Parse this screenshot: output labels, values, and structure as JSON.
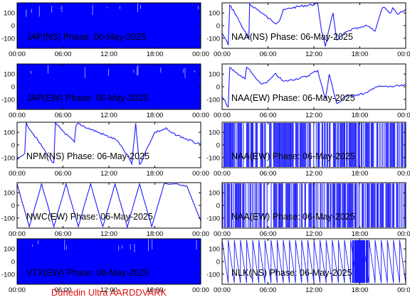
{
  "footer": "Dunedin Ultra AARDDVARK",
  "colors": {
    "trace": "#1a1aff",
    "fill": "#0000ff"
  },
  "chart_data": [
    {
      "type": "line",
      "title": "JAP(NS) Phase: 06-May-2025",
      "x_ticks": [
        "00:00",
        "06:00",
        "12:00",
        "18:00",
        "00:00"
      ],
      "y_ticks": [
        100,
        0,
        -100
      ],
      "ylim": [
        -180,
        180
      ],
      "xlim_hours": [
        0,
        24
      ],
      "style": "solid_fill",
      "series": []
    },
    {
      "type": "line",
      "title": "NAA(NS) Phase: 06-May-2025",
      "x_ticks": [
        "00:00",
        "06:00",
        "12:00",
        "18:00",
        "00:00"
      ],
      "y_ticks": [
        100,
        0,
        -100
      ],
      "ylim": [
        -180,
        180
      ],
      "xlim_hours": [
        0,
        24
      ],
      "style": "trace",
      "series": [
        {
          "x": [
            0,
            0.8,
            1.0,
            1.5,
            3.5,
            3.6,
            5.0,
            6.0,
            7.0,
            7.5,
            8.0,
            9.0,
            11.0,
            12.5,
            13.0,
            13.5,
            14.5,
            15.0,
            16.0,
            17.0,
            18.0,
            19.0,
            20.0,
            21.0,
            22.0,
            22.3,
            23.0,
            24.0
          ],
          "y": [
            -60,
            -150,
            160,
            120,
            -110,
            170,
            110,
            60,
            20,
            40,
            120,
            140,
            160,
            170,
            -40,
            -160,
            100,
            -120,
            -60,
            -30,
            -20,
            0,
            -40,
            150,
            90,
            140,
            90,
            130
          ]
        }
      ]
    },
    {
      "type": "line",
      "title": "JAP(EW) Phase: 06-May-2025",
      "x_ticks": [
        "00:00",
        "06:00",
        "12:00",
        "18:00",
        "00:00"
      ],
      "y_ticks": [
        100,
        0,
        -100
      ],
      "ylim": [
        -180,
        180
      ],
      "xlim_hours": [
        0,
        24
      ],
      "style": "solid_fill",
      "series": []
    },
    {
      "type": "line",
      "title": "NAA(EW) Phase: 06-May-2025",
      "x_ticks": [
        "00:00",
        "06:00",
        "12:00",
        "18:00",
        "00:00"
      ],
      "y_ticks": [
        100,
        0,
        -100
      ],
      "ylim": [
        -180,
        180
      ],
      "xlim_hours": [
        0,
        24
      ],
      "style": "trace",
      "series": [
        {
          "x": [
            0,
            0.8,
            1.0,
            3.0,
            3.2,
            5.0,
            6.0,
            7.0,
            8.0,
            11.0,
            12.5,
            13.5,
            14.0,
            15.0,
            16.0,
            18.0,
            19.0,
            20.0,
            22.0,
            24.0
          ],
          "y": [
            -80,
            -160,
            150,
            60,
            160,
            20,
            40,
            100,
            40,
            80,
            130,
            -100,
            100,
            -140,
            -80,
            -60,
            -50,
            0,
            0,
            10
          ]
        }
      ]
    },
    {
      "type": "line",
      "title": "NPM(NS) Phase: 06-May-2025",
      "x_ticks": [
        "00:00",
        "06:00",
        "12:00",
        "18:00",
        "00:00"
      ],
      "y_ticks": [
        100,
        0,
        -100
      ],
      "ylim": [
        -180,
        180
      ],
      "xlim_hours": [
        0,
        24
      ],
      "style": "trace",
      "series": [
        {
          "x": [
            0,
            1.0,
            1.2,
            4.8,
            5.0,
            7.5,
            7.7,
            8.0,
            9.0,
            11.0,
            13.0,
            14.5,
            15.0,
            15.5,
            16.0,
            17.5,
            18.0,
            19.5,
            20.0,
            24.0
          ],
          "y": [
            -120,
            -60,
            170,
            -150,
            170,
            20,
            150,
            170,
            140,
            90,
            40,
            -90,
            -150,
            170,
            -160,
            40,
            100,
            130,
            100,
            0
          ]
        }
      ]
    },
    {
      "type": "line",
      "title": "NAA(EW) Phase: 06-May-2025",
      "x_ticks": [
        "00:00",
        "06:00",
        "12:00",
        "18:00",
        "00:00"
      ],
      "y_ticks": [
        100,
        0,
        -100
      ],
      "ylim": [
        -180,
        180
      ],
      "xlim_hours": [
        0,
        24
      ],
      "style": "dense_wraps",
      "series": []
    },
    {
      "type": "line",
      "title": "NWC(EW) Phase: 06-May-2025",
      "x_ticks": [
        "00:00",
        "06:00",
        "12:00",
        "18:00",
        "00:00"
      ],
      "y_ticks": [
        100,
        0,
        -100
      ],
      "ylim": [
        -180,
        180
      ],
      "xlim_hours": [
        0,
        24
      ],
      "style": "sawtooth",
      "series": [
        {
          "x": [
            0,
            1.6,
            3.2,
            4.8,
            6.4,
            8.0,
            9.6,
            11.2,
            12.8,
            14.4,
            16.0,
            17.6,
            19.2,
            20.8,
            22.2,
            24.0
          ],
          "y": [
            170,
            -170,
            170,
            -170,
            170,
            -170,
            170,
            -170,
            170,
            -170,
            170,
            -170,
            170,
            170,
            150,
            -120
          ]
        }
      ]
    },
    {
      "type": "line",
      "title": "NAA(EW) Phase: 06-May-2025",
      "x_ticks": [
        "00:00",
        "06:00",
        "12:00",
        "18:00",
        "00:00"
      ],
      "y_ticks": [
        100,
        0,
        -100
      ],
      "ylim": [
        -180,
        180
      ],
      "xlim_hours": [
        0,
        24
      ],
      "style": "dense_wraps",
      "series": []
    },
    {
      "type": "line",
      "title": "VTX(EW) Phase: 06-May-2025",
      "x_ticks": [
        "00:00",
        "06:00",
        "12:00",
        "18:00",
        "00:00"
      ],
      "y_ticks": [
        100,
        0,
        -100
      ],
      "ylim": [
        -180,
        180
      ],
      "xlim_hours": [
        0,
        24
      ],
      "style": "solid_fill",
      "series": []
    },
    {
      "type": "line",
      "title": "NLK(NS) Phase: 06-May-2025",
      "x_ticks": [
        "00:00",
        "06:00",
        "12:00",
        "18:00",
        "00:00"
      ],
      "y_ticks": [
        100,
        0,
        -100
      ],
      "ylim": [
        -180,
        180
      ],
      "xlim_hours": [
        0,
        24
      ],
      "style": "sawtooth_fast",
      "series": []
    }
  ]
}
